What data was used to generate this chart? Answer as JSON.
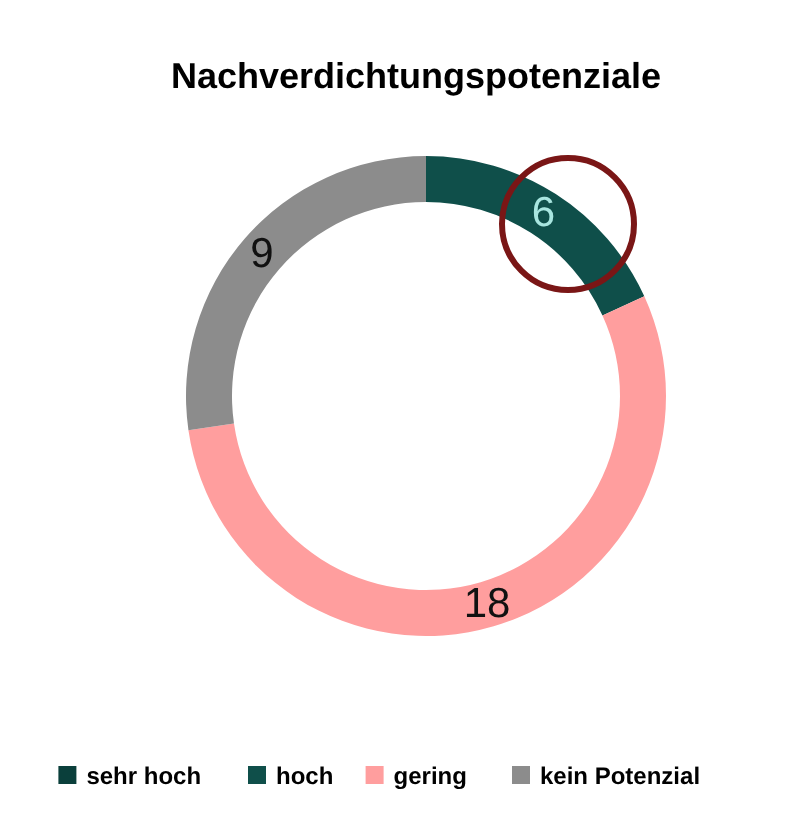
{
  "chart_data": {
    "type": "donut",
    "title": "Nachverdichtungspotenziale",
    "categories": [
      "sehr hoch",
      "hoch",
      "gering",
      "kein Potenzial"
    ],
    "values": [
      0,
      6,
      18,
      9
    ],
    "value_labels": [
      null,
      "6",
      "18",
      "9"
    ],
    "colors": [
      "#0a3f3b",
      "#0f4f4a",
      "#ff9e9e",
      "#8c8c8c"
    ],
    "legend": "bottom"
  }
}
